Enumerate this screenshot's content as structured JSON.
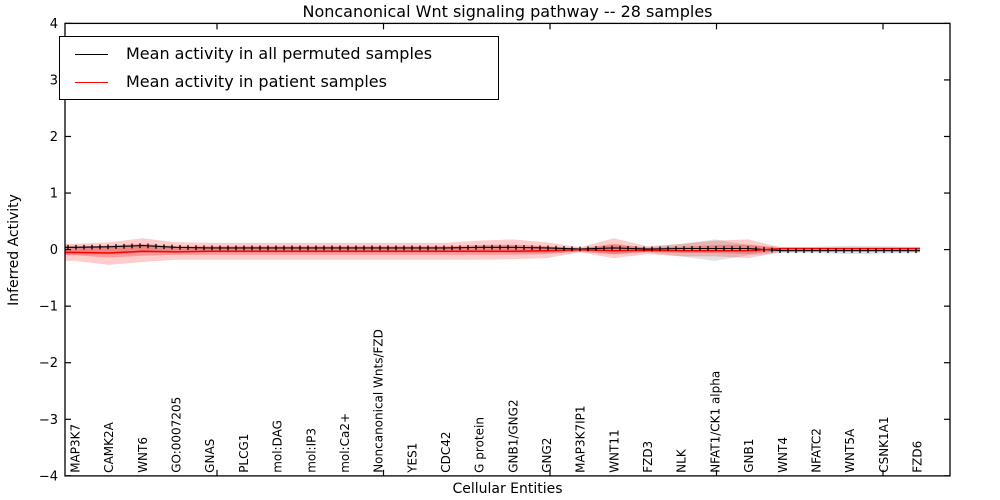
{
  "title": "Noncanonical Wnt signaling pathway -- 28 samples",
  "axes": {
    "x_label": "Cellular Entities",
    "y_label": "Inferred Activity",
    "y_tick_labels": [
      "4",
      "3",
      "2",
      "1",
      "0",
      "−1",
      "−2",
      "−3",
      "−4"
    ],
    "y_tick_values": [
      4,
      3,
      2,
      1,
      0,
      -1,
      -2,
      -3,
      -4
    ]
  },
  "legend": {
    "items": [
      {
        "label": "Mean activity in all permuted samples",
        "color": "#000000"
      },
      {
        "label": "Mean activity in patient samples",
        "color": "#ff0000"
      }
    ]
  },
  "chart_data": {
    "type": "line",
    "title": "Noncanonical Wnt signaling pathway -- 28 samples",
    "xlabel": "Cellular Entities",
    "ylabel": "Inferred Activity",
    "ylim": [
      -4,
      4
    ],
    "grid": false,
    "legend_position": "upper left",
    "categories": [
      "MAP3K7",
      "CAMK2A",
      "WNT6",
      "GO:0007205",
      "GNAS",
      "PLCG1",
      "mol:DAG",
      "mol:IP3",
      "mol:Ca2+",
      "Noncanonical Wnts/FZD",
      "YES1",
      "CDC42",
      "G protein",
      "GNB1/GNG2",
      "GNG2",
      "MAP3K7IP1",
      "WNT11",
      "FZD3",
      "NLK",
      "NFAT1/CK1 alpha",
      "GNB1",
      "WNT4",
      "NFATC2",
      "WNT5A",
      "CSNK1A1",
      "FZD6"
    ],
    "series": [
      {
        "name": "Mean activity in all permuted samples",
        "color": "#000000",
        "values": [
          0.04,
          0.05,
          0.07,
          0.04,
          0.03,
          0.03,
          0.03,
          0.03,
          0.03,
          0.03,
          0.03,
          0.03,
          0.04,
          0.04,
          0.03,
          0.01,
          0.03,
          0.01,
          0.02,
          0.02,
          0.02,
          -0.02,
          -0.02,
          -0.02,
          -0.02,
          -0.02
        ]
      },
      {
        "name": "Mean activity in patient samples",
        "color": "#ff0000",
        "values": [
          -0.05,
          -0.06,
          -0.03,
          -0.04,
          -0.03,
          -0.03,
          -0.03,
          -0.03,
          -0.03,
          -0.03,
          -0.03,
          -0.03,
          -0.03,
          -0.03,
          -0.02,
          0.0,
          -0.02,
          -0.01,
          -0.02,
          -0.02,
          -0.02,
          0.02,
          0.02,
          0.02,
          0.02,
          0.02
        ]
      }
    ],
    "bands": [
      {
        "name": "permuted-samples-range",
        "color": "rgba(110,110,110,0.20)",
        "top": [
          0.07,
          0.06,
          0.05,
          0.04,
          0.04,
          0.04,
          0.04,
          0.04,
          0.04,
          0.04,
          0.04,
          0.04,
          0.04,
          0.05,
          0.05,
          0.03,
          0.08,
          0.04,
          0.1,
          0.18,
          0.08,
          0.05,
          0.05,
          0.07,
          0.06,
          0.05
        ],
        "bottom": [
          -0.09,
          -0.08,
          -0.06,
          -0.05,
          -0.05,
          -0.05,
          -0.05,
          -0.05,
          -0.05,
          -0.05,
          -0.05,
          -0.05,
          -0.05,
          -0.06,
          -0.06,
          -0.04,
          -0.09,
          -0.05,
          -0.12,
          -0.2,
          -0.1,
          -0.06,
          -0.06,
          -0.08,
          -0.07,
          -0.06
        ]
      },
      {
        "name": "patient-samples-range-outer",
        "color": "rgba(255,0,0,0.20)",
        "top": [
          0.1,
          0.13,
          0.2,
          0.13,
          0.12,
          0.12,
          0.12,
          0.12,
          0.12,
          0.12,
          0.12,
          0.12,
          0.16,
          0.18,
          0.13,
          0.04,
          0.2,
          0.06,
          0.1,
          0.16,
          0.18,
          0.03,
          0.02,
          0.02,
          0.02,
          0.03
        ],
        "bottom": [
          -0.2,
          -0.27,
          -0.22,
          -0.18,
          -0.18,
          -0.18,
          -0.18,
          -0.18,
          -0.18,
          -0.18,
          -0.18,
          -0.18,
          -0.18,
          -0.17,
          -0.15,
          -0.05,
          -0.15,
          -0.08,
          -0.12,
          -0.12,
          -0.15,
          -0.04,
          -0.03,
          -0.03,
          -0.03,
          -0.04
        ]
      },
      {
        "name": "patient-samples-range-inner",
        "color": "rgba(255,0,0,0.26)",
        "top": [
          0.05,
          0.07,
          0.1,
          0.06,
          0.06,
          0.06,
          0.06,
          0.06,
          0.06,
          0.06,
          0.06,
          0.06,
          0.08,
          0.09,
          0.06,
          0.02,
          0.1,
          0.03,
          0.05,
          0.08,
          0.09,
          0.02,
          0.01,
          0.01,
          0.01,
          0.02
        ],
        "bottom": [
          -0.1,
          -0.14,
          -0.11,
          -0.09,
          -0.09,
          -0.09,
          -0.09,
          -0.09,
          -0.09,
          -0.09,
          -0.09,
          -0.09,
          -0.09,
          -0.09,
          -0.08,
          -0.03,
          -0.08,
          -0.04,
          -0.06,
          -0.06,
          -0.08,
          -0.02,
          -0.02,
          -0.02,
          -0.02,
          -0.02
        ]
      }
    ]
  }
}
